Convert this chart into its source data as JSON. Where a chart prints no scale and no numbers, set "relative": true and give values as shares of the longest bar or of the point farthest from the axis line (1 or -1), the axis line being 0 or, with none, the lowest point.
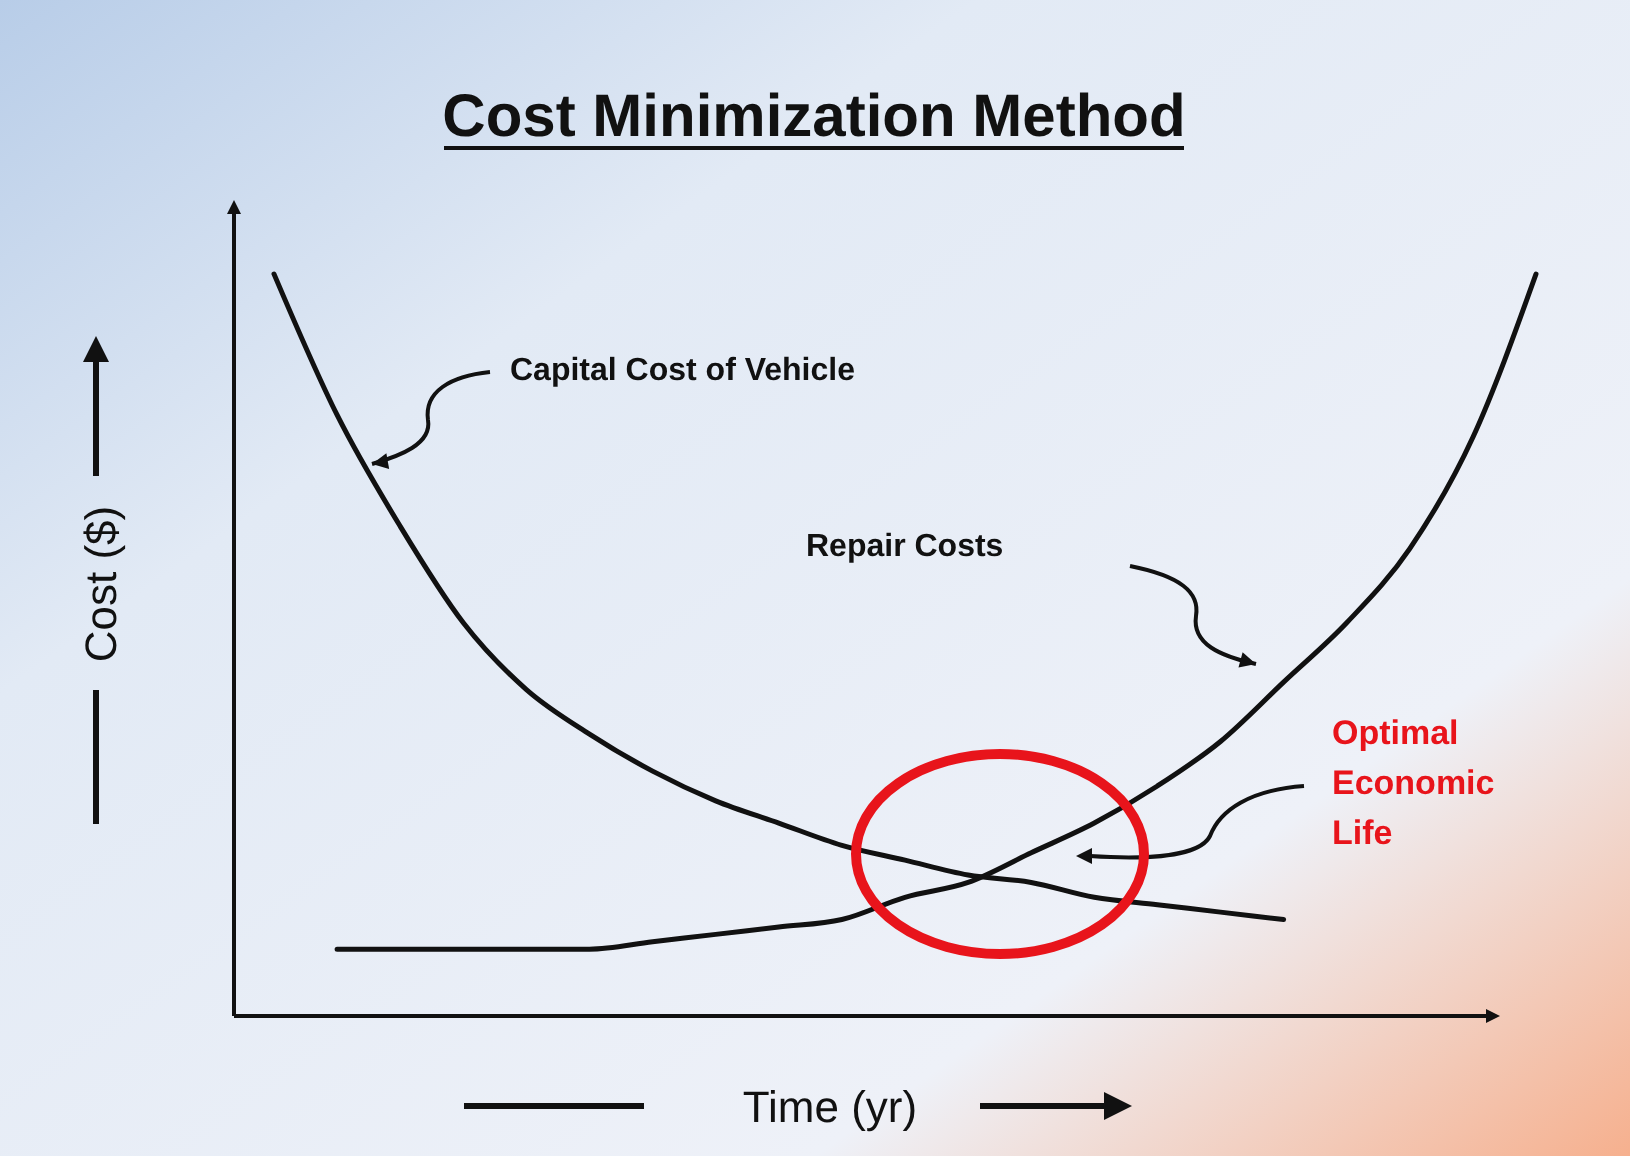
{
  "chart_data": {
    "type": "line",
    "title": "Cost Minimization Method",
    "xlabel": "Time (yr)",
    "ylabel": "Cost ($)",
    "relative": true,
    "categories": [
      null,
      null,
      null,
      null,
      null,
      null,
      null,
      null,
      null,
      null,
      null,
      null,
      null,
      null,
      null,
      null,
      null,
      null,
      null,
      null,
      null
    ],
    "series": [
      {
        "color": "#111111",
        "values": [
          1.0,
          0.81,
          0.66,
          0.53,
          0.44,
          0.38,
          0.33,
          0.29,
          0.26,
          0.23,
          0.21,
          0.19,
          0.18,
          0.16,
          0.15,
          0.14,
          0.13,
          null,
          null,
          null,
          null
        ]
      },
      {
        "color": "#111111",
        "values": [
          null,
          0.09,
          0.09,
          0.09,
          0.09,
          0.09,
          0.1,
          0.11,
          0.12,
          0.13,
          0.16,
          0.18,
          0.22,
          0.26,
          0.31,
          0.37,
          0.45,
          0.53,
          0.63,
          0.78,
          1.0
        ]
      }
    ],
    "annotations": [
      "Capital Cost of Vehicle",
      "Repair Costs",
      "Optimal Economic Life"
    ]
  }
}
